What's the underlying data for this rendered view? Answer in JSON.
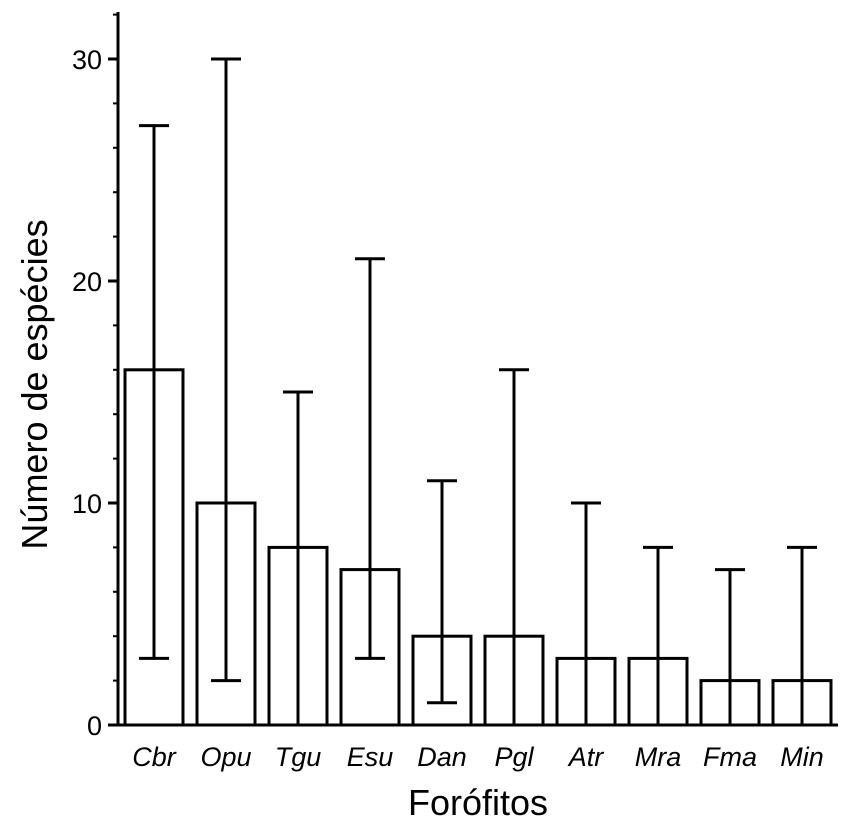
{
  "chart_data": {
    "type": "bar",
    "xlabel": "Forófitos",
    "ylabel": "Número de espécies",
    "ylim": [
      0,
      30
    ],
    "yticks": [
      0,
      10,
      20,
      30
    ],
    "grid": false,
    "error_bars": true,
    "categories": [
      "Cbr",
      "Opu",
      "Tgu",
      "Esu",
      "Dan",
      "Pgl",
      "Atr",
      "Mra",
      "Fma",
      "Min"
    ],
    "values": [
      16,
      10,
      8,
      7,
      4,
      4,
      3,
      3,
      2,
      2
    ],
    "error_low": [
      3,
      2,
      0,
      3,
      1,
      0,
      0,
      0,
      0,
      0
    ],
    "error_high": [
      27,
      30,
      15,
      21,
      11,
      16,
      10,
      8,
      7,
      8
    ]
  }
}
